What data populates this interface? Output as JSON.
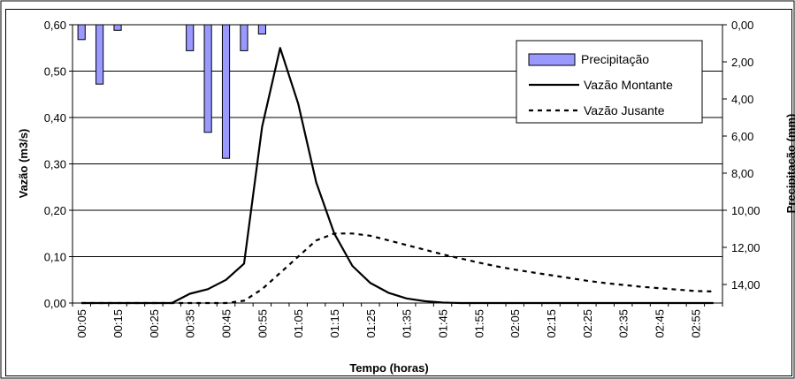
{
  "chart_data": {
    "type": "bar+line",
    "title": "",
    "xlabel": "Tempo (horas)",
    "ylabel": "Vazão (m3/s)",
    "y2label": "Precipitação (mm)",
    "ylim": [
      0,
      0.6
    ],
    "y2lim": [
      0,
      15
    ],
    "y2_inverted": true,
    "yticks": [
      "0,00",
      "0,10",
      "0,20",
      "0,30",
      "0,40",
      "0,50",
      "0,60"
    ],
    "y2ticks": [
      "0,00",
      "2,00",
      "4,00",
      "6,00",
      "8,00",
      "10,00",
      "12,00",
      "14,00"
    ],
    "grid": true,
    "legend_position": "top-right",
    "x": [
      "00:05",
      "00:10",
      "00:15",
      "00:20",
      "00:25",
      "00:30",
      "00:35",
      "00:40",
      "00:45",
      "00:50",
      "00:55",
      "01:00",
      "01:05",
      "01:10",
      "01:15",
      "01:20",
      "01:25",
      "01:30",
      "01:35",
      "01:40",
      "01:45",
      "01:50",
      "01:55",
      "02:00",
      "02:05",
      "02:10",
      "02:15",
      "02:20",
      "02:25",
      "02:30",
      "02:35",
      "02:40",
      "02:45",
      "02:50",
      "02:55",
      "03:00"
    ],
    "xtick_labels": [
      "00:05",
      "00:15",
      "00:25",
      "00:35",
      "00:45",
      "00:55",
      "01:05",
      "01:15",
      "01:25",
      "01:35",
      "01:45",
      "01:55",
      "02:05",
      "02:15",
      "02:25",
      "02:35",
      "02:45",
      "02:55"
    ],
    "series": [
      {
        "name": "Precipitação",
        "type": "bar",
        "axis": "y2",
        "color": "#9999ff",
        "values": [
          0.8,
          3.2,
          0.3,
          0,
          0,
          0,
          1.4,
          5.8,
          7.2,
          1.4,
          0.5,
          0,
          0,
          0,
          0,
          0,
          0,
          0,
          0,
          0,
          0,
          0,
          0,
          0,
          0,
          0,
          0,
          0,
          0,
          0,
          0,
          0,
          0,
          0,
          0,
          0
        ]
      },
      {
        "name": "Vazão Montante",
        "type": "line",
        "axis": "y",
        "color": "#000000",
        "dash": "solid",
        "values": [
          0,
          0,
          0,
          0,
          0,
          0,
          0.02,
          0.03,
          0.05,
          0.085,
          0.38,
          0.55,
          0.43,
          0.26,
          0.15,
          0.08,
          0.043,
          0.022,
          0.01,
          0.004,
          0.001,
          0,
          0,
          0,
          0,
          0,
          0,
          0,
          0,
          0,
          0,
          0,
          0,
          0,
          0,
          0
        ]
      },
      {
        "name": "Vazão Jusante",
        "type": "line",
        "axis": "y",
        "color": "#000000",
        "dash": "dashed",
        "values": [
          0,
          0,
          0,
          0,
          0,
          0,
          0,
          0,
          0,
          0.005,
          0.03,
          0.065,
          0.1,
          0.135,
          0.15,
          0.15,
          0.145,
          0.135,
          0.125,
          0.115,
          0.105,
          0.096,
          0.087,
          0.079,
          0.072,
          0.066,
          0.06,
          0.054,
          0.048,
          0.043,
          0.039,
          0.035,
          0.032,
          0.029,
          0.026,
          0.025
        ]
      }
    ]
  }
}
